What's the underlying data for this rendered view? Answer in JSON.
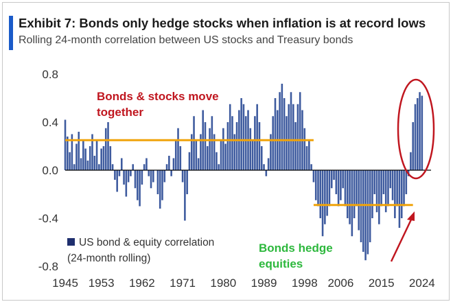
{
  "title": "Exhibit 7: Bonds only hedge stocks when inflation is at record lows",
  "subtitle": "Rolling 24-month correlation between US stocks and Treasury bonds",
  "colors": {
    "accent": "#1a5bc9",
    "bars": "#3d5a9e",
    "legend_marker": "#1f2f6e",
    "level_line": "#f0a30a",
    "annotation_red": "#c0161f",
    "annotation_green": "#2db83d",
    "axis_text": "#333333"
  },
  "chart_data": {
    "type": "bar",
    "title": "Exhibit 7: Bonds only hedge stocks when inflation is at record lows",
    "subtitle": "Rolling 24-month correlation between US stocks and Treasury bonds",
    "xlabel": "",
    "ylabel": "",
    "x_range": [
      1945,
      2026
    ],
    "ylim": [
      -0.8,
      0.8
    ],
    "y_ticks": [
      "0.8",
      "0.4",
      "0.0",
      "-0.4",
      "-0.8"
    ],
    "y_tick_values": [
      0.8,
      0.4,
      0.0,
      -0.4,
      -0.8
    ],
    "x_ticks": [
      "1945",
      "1953",
      "1962",
      "1971",
      "1980",
      "1989",
      "1998",
      "2006",
      "2015",
      "2024"
    ],
    "x_tick_values": [
      1945,
      1953,
      1962,
      1971,
      1980,
      1989,
      1998,
      2006,
      2015,
      2024
    ],
    "grid": false,
    "legend": {
      "position": "bottom-left",
      "label_line1": "US bond & equity correlation",
      "label_line2": "(24-month rolling)"
    },
    "series": [
      {
        "name": "US bond & equity correlation (24-month rolling)",
        "points": [
          [
            1945.0,
            0.42
          ],
          [
            1945.5,
            0.28
          ],
          [
            1946.0,
            0.15
          ],
          [
            1946.5,
            0.3
          ],
          [
            1947.0,
            0.05
          ],
          [
            1947.5,
            0.22
          ],
          [
            1948.0,
            0.32
          ],
          [
            1948.5,
            0.1
          ],
          [
            1949.0,
            0.25
          ],
          [
            1949.5,
            0.18
          ],
          [
            1950.0,
            0.08
          ],
          [
            1950.5,
            0.2
          ],
          [
            1951.0,
            0.3
          ],
          [
            1951.5,
            0.12
          ],
          [
            1952.0,
            0.25
          ],
          [
            1952.5,
            0.05
          ],
          [
            1953.0,
            0.18
          ],
          [
            1953.5,
            0.2
          ],
          [
            1954.0,
            0.35
          ],
          [
            1954.5,
            0.4
          ],
          [
            1955.0,
            0.2
          ],
          [
            1955.5,
            0.05
          ],
          [
            1956.0,
            -0.08
          ],
          [
            1956.5,
            -0.18
          ],
          [
            1957.0,
            -0.05
          ],
          [
            1957.5,
            0.1
          ],
          [
            1958.0,
            -0.12
          ],
          [
            1958.5,
            -0.22
          ],
          [
            1959.0,
            -0.1
          ],
          [
            1959.5,
            -0.05
          ],
          [
            1960.0,
            0.05
          ],
          [
            1960.5,
            -0.15
          ],
          [
            1961.0,
            -0.25
          ],
          [
            1961.5,
            -0.3
          ],
          [
            1962.0,
            -0.12
          ],
          [
            1962.5,
            0.05
          ],
          [
            1963.0,
            0.1
          ],
          [
            1963.5,
            -0.05
          ],
          [
            1964.0,
            -0.15
          ],
          [
            1964.5,
            -0.1
          ],
          [
            1965.0,
            0.0
          ],
          [
            1965.5,
            -0.2
          ],
          [
            1966.0,
            -0.32
          ],
          [
            1966.5,
            -0.25
          ],
          [
            1967.0,
            -0.1
          ],
          [
            1967.5,
            0.05
          ],
          [
            1968.0,
            0.12
          ],
          [
            1968.5,
            -0.05
          ],
          [
            1969.0,
            0.1
          ],
          [
            1969.5,
            0.25
          ],
          [
            1970.0,
            0.35
          ],
          [
            1970.5,
            0.2
          ],
          [
            1971.0,
            -0.1
          ],
          [
            1971.5,
            -0.42
          ],
          [
            1972.0,
            -0.2
          ],
          [
            1972.5,
            0.15
          ],
          [
            1973.0,
            0.3
          ],
          [
            1973.5,
            0.45
          ],
          [
            1974.0,
            0.25
          ],
          [
            1974.5,
            0.1
          ],
          [
            1975.0,
            0.3
          ],
          [
            1975.5,
            0.5
          ],
          [
            1976.0,
            0.4
          ],
          [
            1976.5,
            0.2
          ],
          [
            1977.0,
            0.35
          ],
          [
            1977.5,
            0.45
          ],
          [
            1978.0,
            0.3
          ],
          [
            1978.5,
            0.15
          ],
          [
            1979.0,
            0.05
          ],
          [
            1979.5,
            0.25
          ],
          [
            1980.0,
            0.35
          ],
          [
            1980.5,
            0.22
          ],
          [
            1981.0,
            0.4
          ],
          [
            1981.5,
            0.55
          ],
          [
            1982.0,
            0.45
          ],
          [
            1982.5,
            0.3
          ],
          [
            1983.0,
            0.4
          ],
          [
            1983.5,
            0.5
          ],
          [
            1984.0,
            0.6
          ],
          [
            1984.5,
            0.55
          ],
          [
            1985.0,
            0.45
          ],
          [
            1985.5,
            0.5
          ],
          [
            1986.0,
            0.35
          ],
          [
            1986.5,
            0.25
          ],
          [
            1987.0,
            0.45
          ],
          [
            1987.5,
            0.55
          ],
          [
            1988.0,
            0.4
          ],
          [
            1988.5,
            0.2
          ],
          [
            1989.0,
            0.05
          ],
          [
            1989.5,
            -0.05
          ],
          [
            1990.0,
            0.1
          ],
          [
            1990.5,
            0.3
          ],
          [
            1991.0,
            0.45
          ],
          [
            1991.5,
            0.6
          ],
          [
            1992.0,
            0.5
          ],
          [
            1992.5,
            0.65
          ],
          [
            1993.0,
            0.72
          ],
          [
            1993.5,
            0.6
          ],
          [
            1994.0,
            0.45
          ],
          [
            1994.5,
            0.55
          ],
          [
            1995.0,
            0.65
          ],
          [
            1995.5,
            0.55
          ],
          [
            1996.0,
            0.4
          ],
          [
            1996.5,
            0.55
          ],
          [
            1997.0,
            0.65
          ],
          [
            1997.5,
            0.5
          ],
          [
            1998.0,
            0.35
          ],
          [
            1998.5,
            0.2
          ],
          [
            1999.0,
            0.25
          ],
          [
            1999.5,
            0.05
          ],
          [
            2000.0,
            -0.1
          ],
          [
            2000.5,
            -0.25
          ],
          [
            2001.0,
            -0.3
          ],
          [
            2001.5,
            -0.4
          ],
          [
            2002.0,
            -0.55
          ],
          [
            2002.5,
            -0.45
          ],
          [
            2003.0,
            -0.38
          ],
          [
            2003.5,
            -0.3
          ],
          [
            2004.0,
            -0.15
          ],
          [
            2004.5,
            -0.08
          ],
          [
            2005.0,
            -0.2
          ],
          [
            2005.5,
            -0.3
          ],
          [
            2006.0,
            -0.25
          ],
          [
            2006.5,
            -0.15
          ],
          [
            2007.0,
            -0.3
          ],
          [
            2007.5,
            -0.4
          ],
          [
            2008.0,
            -0.45
          ],
          [
            2008.5,
            -0.55
          ],
          [
            2009.0,
            -0.4
          ],
          [
            2009.5,
            -0.3
          ],
          [
            2010.0,
            -0.5
          ],
          [
            2010.5,
            -0.6
          ],
          [
            2011.0,
            -0.68
          ],
          [
            2011.5,
            -0.75
          ],
          [
            2012.0,
            -0.7
          ],
          [
            2012.5,
            -0.6
          ],
          [
            2013.0,
            -0.4
          ],
          [
            2013.5,
            -0.2
          ],
          [
            2014.0,
            -0.35
          ],
          [
            2014.5,
            -0.45
          ],
          [
            2015.0,
            -0.3
          ],
          [
            2015.5,
            -0.2
          ],
          [
            2016.0,
            -0.35
          ],
          [
            2016.5,
            -0.3
          ],
          [
            2017.0,
            -0.15
          ],
          [
            2017.5,
            -0.25
          ],
          [
            2018.0,
            -0.4
          ],
          [
            2018.5,
            -0.3
          ],
          [
            2019.0,
            -0.48
          ],
          [
            2019.5,
            -0.4
          ],
          [
            2020.0,
            -0.3
          ],
          [
            2020.5,
            -0.2
          ],
          [
            2021.0,
            -0.05
          ],
          [
            2021.5,
            0.15
          ],
          [
            2022.0,
            0.4
          ],
          [
            2022.5,
            0.55
          ],
          [
            2023.0,
            0.6
          ],
          [
            2023.5,
            0.65
          ],
          [
            2024.0,
            0.62
          ]
        ]
      }
    ],
    "reference_lines": [
      {
        "from": 1945,
        "to": 2000,
        "y": 0.25
      },
      {
        "from": 2000,
        "to": 2022,
        "y": -0.29
      }
    ],
    "annotations": [
      {
        "text_line1": "Bonds & stocks move",
        "text_line2": "together",
        "color": "annotation_red"
      },
      {
        "text_line1": "Bonds hedge",
        "text_line2": "equities",
        "color": "annotation_green"
      }
    ]
  }
}
